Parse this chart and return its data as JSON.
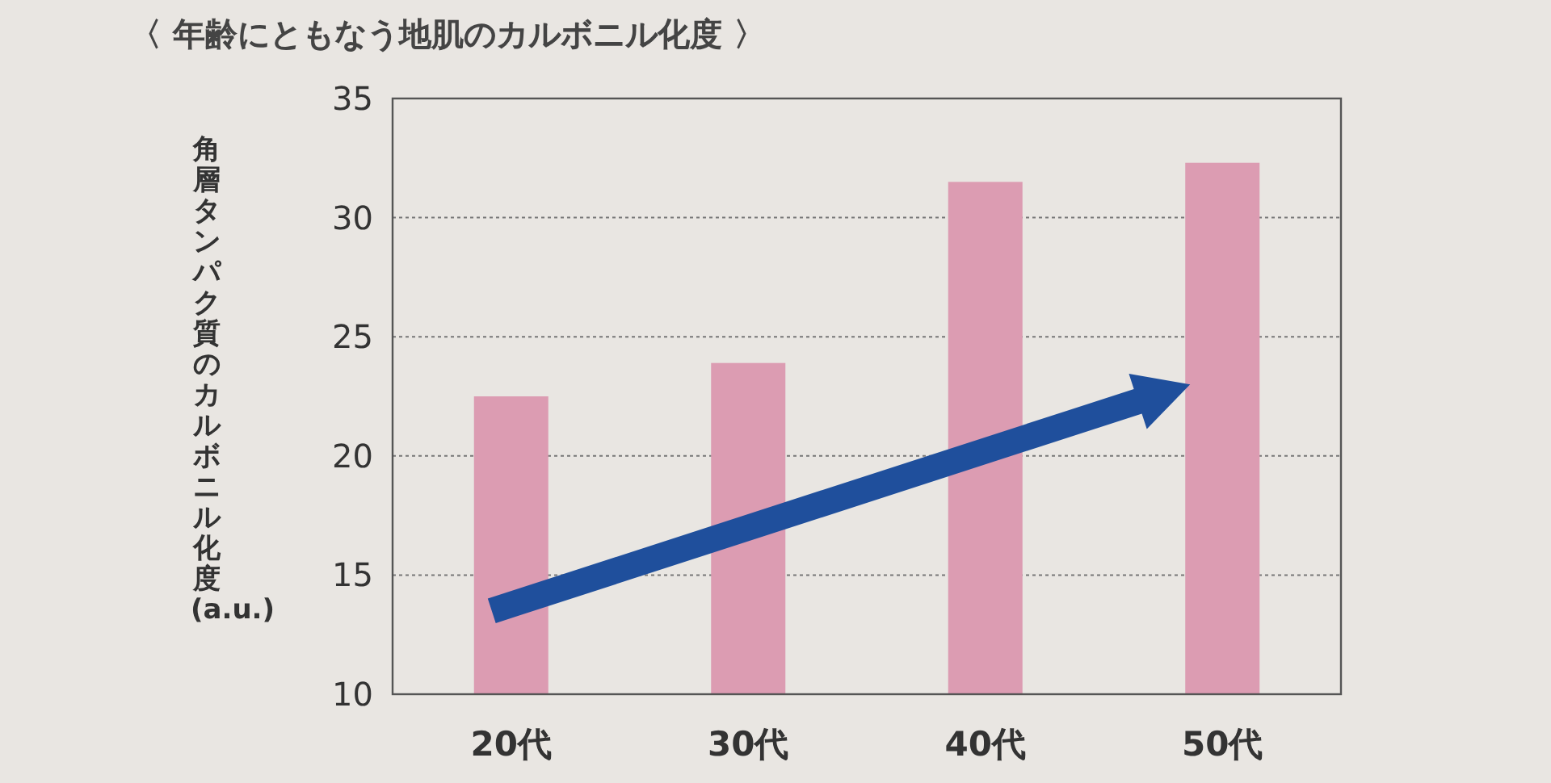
{
  "chart_data": {
    "type": "bar",
    "title": "〈 年齢にともなう地肌のカルボニル化度 〉",
    "ylabel": "角層タンパク質のカルボニル化度(a.u.)",
    "categories": [
      "20代",
      "30代",
      "40代",
      "50代"
    ],
    "values": [
      22.5,
      23.9,
      31.5,
      32.3
    ],
    "color": "#dc9cb2",
    "ylim": [
      10,
      35
    ],
    "yticks": [
      10,
      15,
      20,
      25,
      30,
      35
    ],
    "grid": "y"
  }
}
